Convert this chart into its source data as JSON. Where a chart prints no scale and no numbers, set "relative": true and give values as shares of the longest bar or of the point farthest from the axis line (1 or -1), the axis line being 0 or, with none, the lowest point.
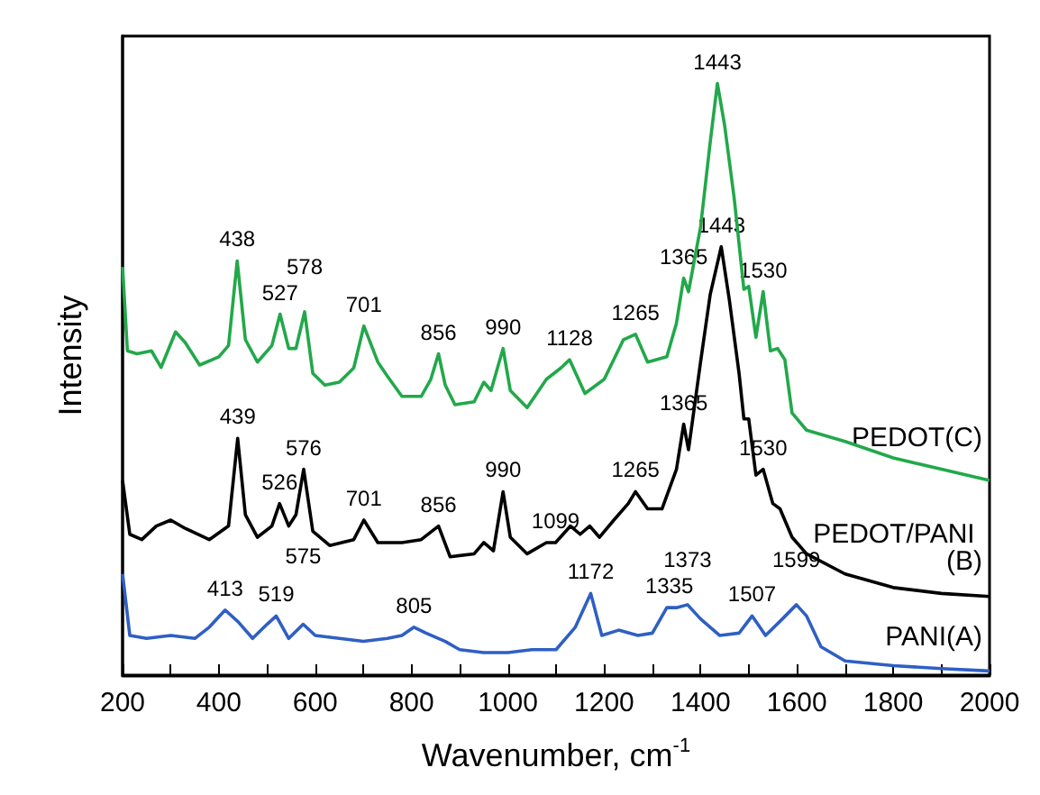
{
  "chart_data": {
    "type": "line",
    "relative": true,
    "xlabel": "Wavenumber, cm$^{-1}$",
    "ylabel": "Intensity",
    "xlim": [
      200,
      2000
    ],
    "xticks": [
      200,
      400,
      600,
      800,
      1000,
      1200,
      1400,
      1600,
      1800,
      2000
    ],
    "legend": false,
    "grid": false,
    "marker": "none",
    "line_style": "solid",
    "series": [
      {
        "name": "PEDOT(C)",
        "color": "#22a84a",
        "x": [
          200,
          210,
          230,
          260,
          280,
          310,
          330,
          360,
          400,
          420,
          438,
          455,
          480,
          510,
          527,
          545,
          560,
          578,
          595,
          620,
          650,
          680,
          701,
          730,
          750,
          780,
          820,
          840,
          856,
          870,
          890,
          930,
          950,
          965,
          990,
          1005,
          1040,
          1080,
          1110,
          1128,
          1160,
          1200,
          1240,
          1265,
          1290,
          1330,
          1350,
          1365,
          1375,
          1400,
          1420,
          1435,
          1450,
          1470,
          1490,
          1500,
          1515,
          1530,
          1545,
          1560,
          1575,
          1590,
          1620,
          1700,
          1800,
          1900,
          2000
        ],
        "values": [
          0.69,
          0.548,
          0.543,
          0.548,
          0.52,
          0.58,
          0.562,
          0.524,
          0.538,
          0.557,
          0.7,
          0.567,
          0.529,
          0.557,
          0.61,
          0.552,
          0.552,
          0.614,
          0.51,
          0.49,
          0.495,
          0.519,
          0.59,
          0.529,
          0.505,
          0.471,
          0.471,
          0.5,
          0.543,
          0.49,
          0.457,
          0.462,
          0.495,
          0.481,
          0.552,
          0.481,
          0.452,
          0.5,
          0.519,
          0.533,
          0.476,
          0.5,
          0.567,
          0.576,
          0.529,
          0.538,
          0.595,
          0.671,
          0.648,
          0.757,
          0.9,
          1,
          0.929,
          0.805,
          0.652,
          0.657,
          0.571,
          0.648,
          0.548,
          0.552,
          0.533,
          0.443,
          0.414,
          0.395,
          0.367,
          0.348,
          0.329
        ]
      },
      {
        "name": "PEDOT/PANI (B)",
        "color": "#000000",
        "x": [
          200,
          215,
          240,
          270,
          300,
          330,
          380,
          420,
          439,
          455,
          480,
          510,
          526,
          545,
          560,
          576,
          595,
          630,
          680,
          701,
          730,
          780,
          820,
          856,
          880,
          930,
          950,
          970,
          990,
          1005,
          1040,
          1080,
          1099,
          1130,
          1150,
          1170,
          1190,
          1220,
          1250,
          1265,
          1290,
          1320,
          1350,
          1365,
          1375,
          1400,
          1420,
          1443,
          1460,
          1480,
          1490,
          1500,
          1515,
          1530,
          1550,
          1565,
          1590,
          1620,
          1700,
          1800,
          1900,
          2000
        ],
        "values": [
          0.329,
          0.238,
          0.229,
          0.252,
          0.262,
          0.248,
          0.229,
          0.252,
          0.4,
          0.271,
          0.233,
          0.252,
          0.29,
          0.252,
          0.271,
          0.348,
          0.243,
          0.219,
          0.229,
          0.262,
          0.224,
          0.224,
          0.229,
          0.252,
          0.2,
          0.205,
          0.224,
          0.21,
          0.31,
          0.233,
          0.205,
          0.224,
          0.224,
          0.252,
          0.238,
          0.252,
          0.233,
          0.262,
          0.29,
          0.31,
          0.281,
          0.281,
          0.348,
          0.424,
          0.381,
          0.529,
          0.643,
          0.724,
          0.633,
          0.51,
          0.433,
          0.433,
          0.338,
          0.348,
          0.29,
          0.281,
          0.233,
          0.205,
          0.171,
          0.148,
          0.138,
          0.133
        ]
      },
      {
        "name": "PANI(A)",
        "color": "#2f5fc4",
        "x": [
          200,
          215,
          250,
          300,
          350,
          380,
          413,
          440,
          470,
          500,
          519,
          545,
          575,
          600,
          650,
          700,
          750,
          780,
          805,
          830,
          870,
          900,
          950,
          1000,
          1050,
          1100,
          1140,
          1172,
          1195,
          1230,
          1270,
          1300,
          1330,
          1350,
          1373,
          1400,
          1440,
          1480,
          1507,
          1535,
          1570,
          1599,
          1620,
          1650,
          1700,
          1800,
          1900,
          2000
        ],
        "values": [
          0.171,
          0.067,
          0.062,
          0.067,
          0.062,
          0.081,
          0.11,
          0.09,
          0.062,
          0.086,
          0.1,
          0.062,
          0.086,
          0.067,
          0.062,
          0.057,
          0.062,
          0.067,
          0.081,
          0.071,
          0.057,
          0.043,
          0.038,
          0.038,
          0.043,
          0.043,
          0.081,
          0.138,
          0.067,
          0.076,
          0.067,
          0.071,
          0.114,
          0.114,
          0.119,
          0.095,
          0.067,
          0.071,
          0.1,
          0.067,
          0.095,
          0.119,
          0.1,
          0.048,
          0.024,
          0.016,
          0.011,
          0.007
        ]
      }
    ],
    "annotations": [
      {
        "text": "438",
        "x": 438,
        "y": 0.7
      },
      {
        "text": "527",
        "x": 527,
        "y": 0.61
      },
      {
        "text": "578",
        "x": 578,
        "y": 0.614
      },
      {
        "text": "701",
        "x": 701,
        "y": 0.59
      },
      {
        "text": "856",
        "x": 856,
        "y": 0.543
      },
      {
        "text": "990",
        "x": 990,
        "y": 0.552
      },
      {
        "text": "1128",
        "x": 1128,
        "y": 0.533
      },
      {
        "text": "1265",
        "x": 1265,
        "y": 0.576
      },
      {
        "text": "1365",
        "x": 1365,
        "y": 0.671
      },
      {
        "text": "1443",
        "x": 1435,
        "y": 1
      },
      {
        "text": "1530",
        "x": 1530,
        "y": 0.648
      },
      {
        "text": "439",
        "x": 439,
        "y": 0.4
      },
      {
        "text": "526",
        "x": 526,
        "y": 0.29
      },
      {
        "text": "576",
        "x": 576,
        "y": 0.348
      },
      {
        "text": "701",
        "x": 701,
        "y": 0.262
      },
      {
        "text": "856",
        "x": 856,
        "y": 0.252
      },
      {
        "text": "990",
        "x": 990,
        "y": 0.31
      },
      {
        "text": "1099",
        "x": 1099,
        "y": 0.224
      },
      {
        "text": "1265",
        "x": 1265,
        "y": 0.31
      },
      {
        "text": "1365",
        "x": 1365,
        "y": 0.424
      },
      {
        "text": "1443",
        "x": 1443,
        "y": 0.724
      },
      {
        "text": "1530",
        "x": 1530,
        "y": 0.348
      },
      {
        "text": "413",
        "x": 413,
        "y": 0.11
      },
      {
        "text": "519",
        "x": 519,
        "y": 0.1
      },
      {
        "text": "575",
        "x": 575,
        "y": 0.086
      },
      {
        "text": "805",
        "x": 805,
        "y": 0.081
      },
      {
        "text": "1172",
        "x": 1172,
        "y": 0.138
      },
      {
        "text": "1335",
        "x": 1335,
        "y": 0.114
      },
      {
        "text": "1373",
        "x": 1373,
        "y": 0.119
      },
      {
        "text": "1507",
        "x": 1507,
        "y": 0.1
      },
      {
        "text": "1599",
        "x": 1599,
        "y": 0.119
      }
    ]
  }
}
